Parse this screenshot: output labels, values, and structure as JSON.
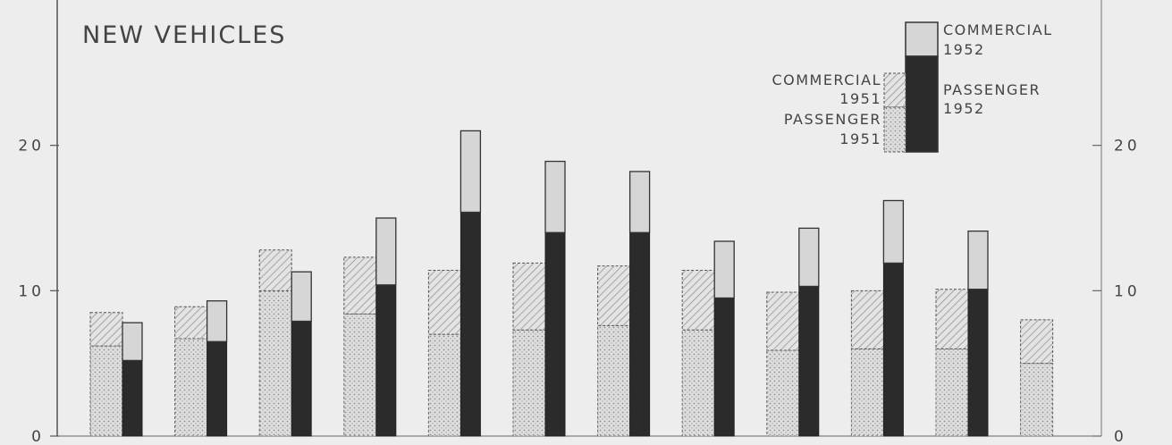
{
  "chart_data": {
    "type": "bar",
    "title": "NEW VEHICLES",
    "ylim": [
      0,
      30
    ],
    "y_ticks": [
      0,
      10,
      20
    ],
    "y_tick_labels": [
      "0",
      "10",
      "20"
    ],
    "grid": false,
    "legend_position": "top-right",
    "legend": {
      "commercial_1952": [
        "COMMERCIAL",
        "1952"
      ],
      "passenger_1952": [
        "PASSENGER",
        "1952"
      ],
      "commercial_1951": [
        "COMMERCIAL",
        "1951"
      ],
      "passenger_1951": [
        "PASSENGER",
        "1951"
      ]
    },
    "years": [
      {
        "year": "1951",
        "stack": [
          {
            "name": "passenger",
            "values": [
              6.2,
              6.7,
              10.0,
              8.4,
              7.0,
              7.3,
              7.6,
              7.3,
              5.9,
              6.0,
              6.0,
              5.0
            ]
          },
          {
            "name": "commercial",
            "values": [
              2.3,
              2.2,
              2.8,
              3.9,
              4.4,
              4.6,
              4.1,
              4.1,
              4.0,
              4.0,
              4.1,
              3.0
            ]
          }
        ]
      },
      {
        "year": "1952",
        "stack": [
          {
            "name": "passenger",
            "values": [
              5.2,
              6.5,
              7.9,
              10.4,
              15.4,
              14.0,
              14.0,
              9.5,
              10.3,
              11.9,
              10.1,
              null
            ]
          },
          {
            "name": "commercial",
            "values": [
              2.6,
              2.8,
              3.4,
              4.6,
              5.6,
              4.9,
              4.2,
              3.9,
              4.0,
              4.3,
              4.0,
              null
            ]
          }
        ]
      }
    ],
    "colors": {
      "commercial_1952": "#d6d6d6",
      "passenger_1952": "#2b2b2b",
      "background": "#ededed",
      "outline": "#333333"
    }
  }
}
